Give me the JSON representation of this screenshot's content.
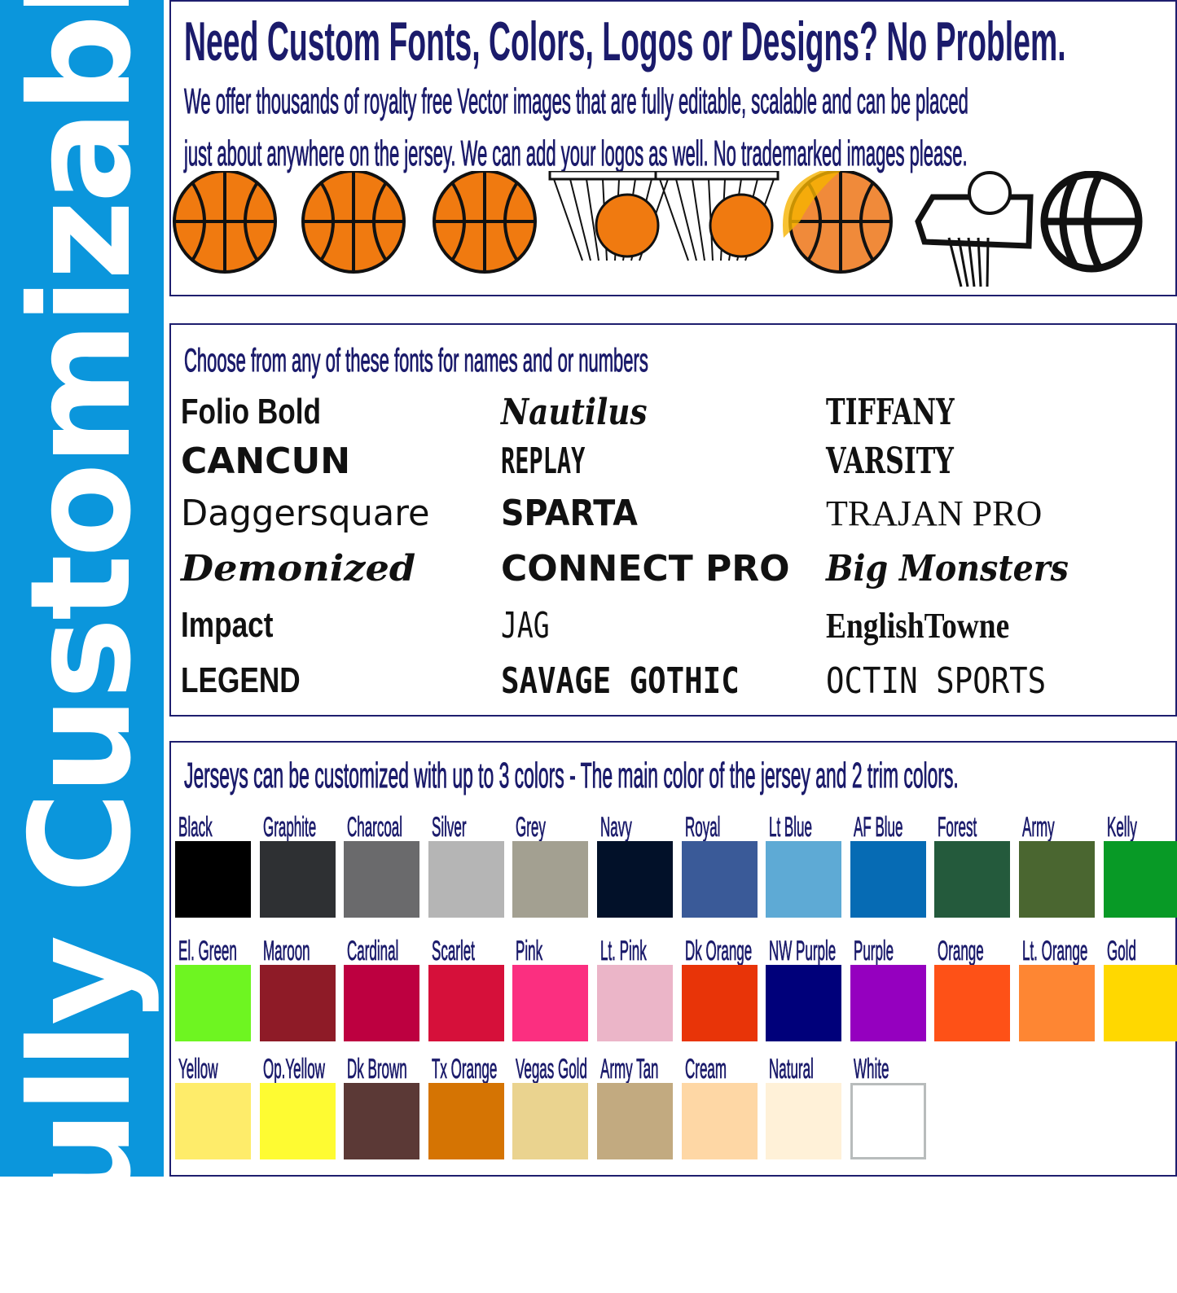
{
  "sidebar": {
    "label": "Fully Customizable",
    "color": "#0b96dc"
  },
  "header": {
    "title": "Need Custom Fonts, Colors, Logos or Designs? No Problem.",
    "line1": "We offer thousands of royalty free Vector images that are fully editable, scalable and can be placed",
    "line2": "just about anywhere on the jersey.  We can add your logos as well.  No trademarked images please."
  },
  "icons": [
    "basketball-icon",
    "basketball-icon",
    "basketball-icon",
    "basketball-in-net-icon",
    "basketball-net-icon",
    "flaming-basketball-icon",
    "hoop-outline-icon",
    "basketball-outline-icon"
  ],
  "fonts": {
    "heading": "Choose from any of these fonts for names and or numbers",
    "columns": [
      [
        "Folio Bold",
        "CANCUN",
        "Daggersquare",
        "Demonized",
        "Impact",
        "LEGEND"
      ],
      [
        "Nautilus",
        "REPLAY",
        "SPARTA",
        "CONNECT PRO",
        "JAG",
        "SAVAGE GOTHIC"
      ],
      [
        "TIFFANY",
        "VARSITY",
        "TRAJAN PRO",
        "Big Monsters",
        "EnglishTowne",
        "OCTIN SPORTS"
      ]
    ]
  },
  "colors": {
    "heading": "Jerseys can be customized with up to 3 colors - The main color of the jersey and 2 trim colors.",
    "rows": [
      [
        [
          "Black",
          "#000000"
        ],
        [
          "Graphite",
          "#2e3033"
        ],
        [
          "Charcoal",
          "#6a6a6c"
        ],
        [
          "Silver",
          "#b5b5b5"
        ],
        [
          "Grey",
          "#a3a091"
        ],
        [
          "Navy",
          "#021129"
        ],
        [
          "Royal",
          "#3a5a98"
        ],
        [
          "Lt Blue",
          "#5eaad5"
        ],
        [
          "AF Blue",
          "#066bb4"
        ],
        [
          "Forest",
          "#245a3c"
        ],
        [
          "Army",
          "#4a6630"
        ],
        [
          "Kelly",
          "#089a26"
        ]
      ],
      [
        [
          "El. Green",
          "#6ef521"
        ],
        [
          "Maroon",
          "#8e1b27"
        ],
        [
          "Cardinal",
          "#bd0040"
        ],
        [
          "Scarlet",
          "#d6103a"
        ],
        [
          "Pink",
          "#fb2f80"
        ],
        [
          "Lt. Pink",
          "#ebb5c8"
        ],
        [
          "Dk Orange",
          "#e83408"
        ],
        [
          "NW Purple",
          "#00007a"
        ],
        [
          "Purple",
          "#9500bf"
        ],
        [
          "Orange",
          "#fe5117"
        ],
        [
          "Lt. Orange",
          "#fe8633"
        ],
        [
          "Gold",
          "#ffd800"
        ]
      ],
      [
        [
          "Yellow",
          "#feec6a"
        ],
        [
          "Op.Yellow",
          "#fefb32"
        ],
        [
          "Dk Brown",
          "#5b3936"
        ],
        [
          "Tx Orange",
          "#d57403"
        ],
        [
          "Vegas Gold",
          "#ead38f"
        ],
        [
          "Army Tan",
          "#c2aa80"
        ],
        [
          "Cream",
          "#fed7a5"
        ],
        [
          "Natural",
          "#fff1d8"
        ],
        [
          "White",
          "#ffffff"
        ]
      ]
    ]
  }
}
